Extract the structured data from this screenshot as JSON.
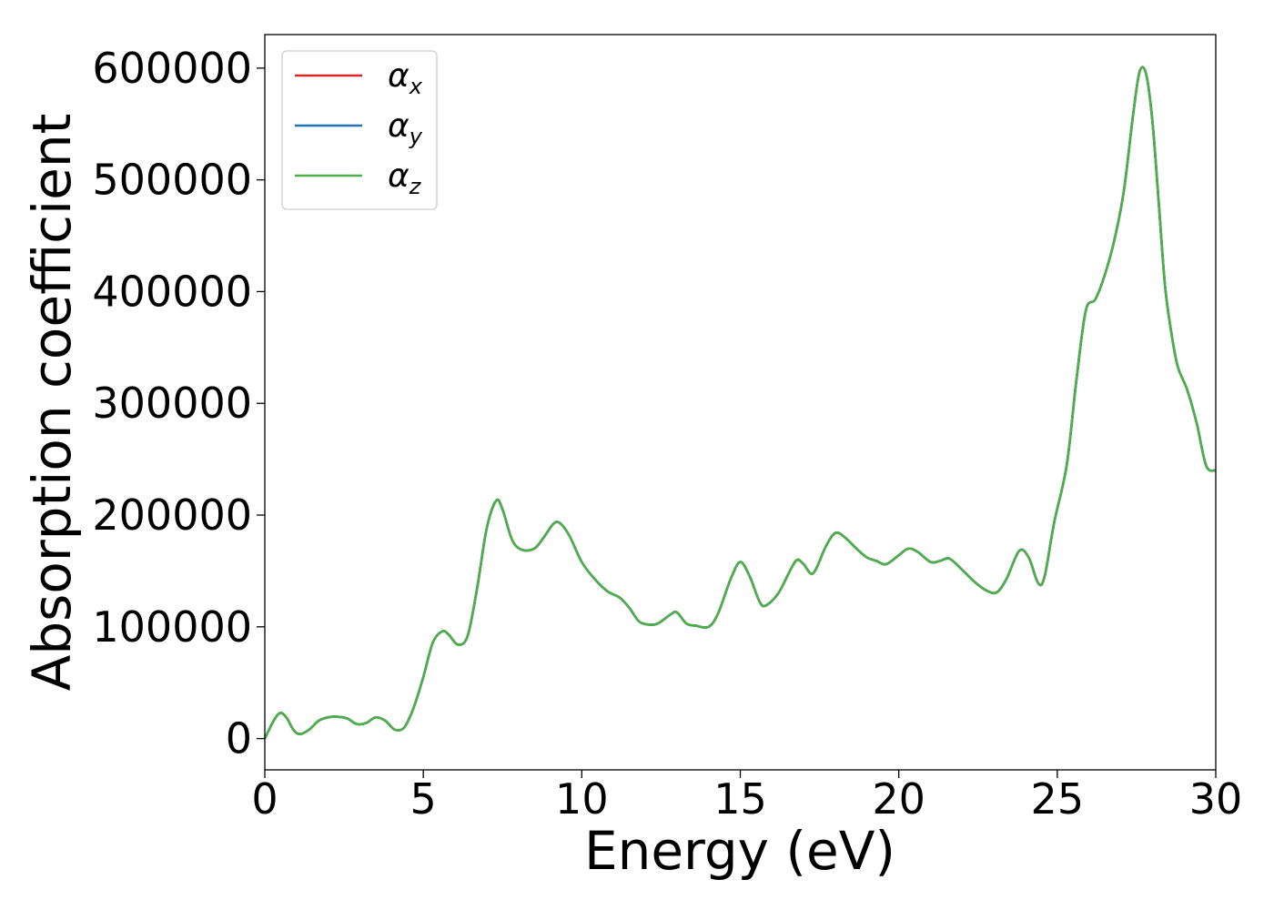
{
  "chart_data": {
    "type": "line",
    "xlabel": "Energy (eV)",
    "ylabel": "Absorption coefficient",
    "xlim": [
      0,
      30
    ],
    "ylim": [
      -28000,
      630000
    ],
    "xticks": [
      0,
      5,
      10,
      15,
      20,
      25,
      30
    ],
    "xtick_labels": [
      "0",
      "5",
      "10",
      "15",
      "20",
      "25",
      "30"
    ],
    "yticks": [
      0,
      100000,
      200000,
      300000,
      400000,
      500000,
      600000
    ],
    "ytick_labels": [
      "0",
      "100000",
      "200000",
      "300000",
      "400000",
      "500000",
      "600000"
    ],
    "grid": false,
    "legend_position": "top-left",
    "series": [
      {
        "name": "α",
        "sub": "x",
        "color": "#d62728"
      },
      {
        "name": "α",
        "sub": "y",
        "color": "#1f77b4"
      },
      {
        "name": "α",
        "sub": "z",
        "color": "#4daf4a"
      }
    ],
    "x": [
      0,
      0.3,
      0.5,
      0.7,
      0.9,
      1.1,
      1.4,
      1.7,
      2.0,
      2.3,
      2.6,
      2.9,
      3.2,
      3.5,
      3.8,
      4.1,
      4.4,
      4.7,
      5.0,
      5.3,
      5.6,
      5.8,
      6.1,
      6.4,
      6.7,
      7.0,
      7.3,
      7.5,
      7.8,
      8.1,
      8.5,
      8.8,
      9.1,
      9.3,
      9.6,
      10.0,
      10.4,
      10.8,
      11.2,
      11.5,
      11.8,
      12.1,
      12.4,
      12.8,
      13.0,
      13.3,
      13.6,
      14.0,
      14.3,
      14.7,
      15.0,
      15.3,
      15.6,
      15.8,
      16.2,
      16.6,
      16.8,
      17.0,
      17.3,
      17.7,
      18.0,
      18.3,
      18.7,
      19.0,
      19.3,
      19.6,
      20.0,
      20.3,
      20.6,
      21.0,
      21.3,
      21.6,
      22.0,
      22.4,
      22.8,
      23.1,
      23.4,
      23.8,
      24.1,
      24.4,
      24.6,
      24.9,
      25.3,
      25.6,
      25.9,
      26.2,
      26.5,
      26.8,
      27.1,
      27.4,
      27.6,
      27.8,
      28.0,
      28.2,
      28.4,
      28.6,
      28.8,
      29.1,
      29.4,
      29.7,
      30.0
    ],
    "values": [
      0,
      17000,
      23000,
      18000,
      8000,
      4000,
      8000,
      16000,
      19000,
      19500,
      18000,
      13000,
      14000,
      19000,
      16000,
      8000,
      10000,
      28000,
      55000,
      86000,
      96000,
      93000,
      84000,
      92000,
      135000,
      188000,
      213000,
      205000,
      178000,
      169000,
      170000,
      180000,
      192000,
      193000,
      182000,
      158000,
      143000,
      132000,
      126000,
      117000,
      105000,
      102000,
      103000,
      111000,
      113000,
      103000,
      101000,
      100000,
      112000,
      143000,
      158000,
      145000,
      123000,
      119000,
      130000,
      152000,
      160000,
      156000,
      148000,
      172000,
      184000,
      180000,
      169000,
      162000,
      159000,
      156000,
      164000,
      170000,
      167000,
      158000,
      159000,
      161000,
      151000,
      140000,
      132000,
      131000,
      143000,
      168000,
      162000,
      139000,
      145000,
      193000,
      245000,
      320000,
      383000,
      393000,
      415000,
      446000,
      490000,
      560000,
      597000,
      595000,
      553000,
      480000,
      405000,
      363000,
      333000,
      312000,
      282000,
      244000,
      240000
    ]
  }
}
